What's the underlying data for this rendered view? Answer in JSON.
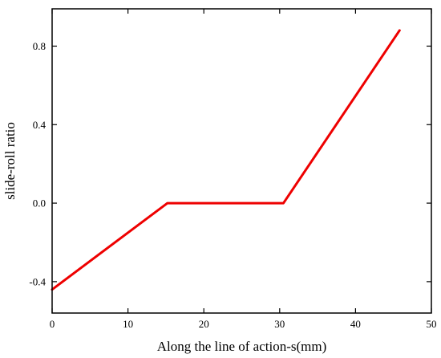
{
  "chart_data": {
    "type": "line",
    "title": "",
    "xlabel": "Along the line of action-s(mm)",
    "ylabel": "slide-roll ratio",
    "xlim": [
      0,
      50
    ],
    "ylim": [
      -0.56,
      0.99
    ],
    "x_ticks": [
      0,
      10,
      20,
      30,
      40,
      50
    ],
    "x_tick_labels": [
      "0",
      "10",
      "20",
      "30",
      "40",
      "50"
    ],
    "y_ticks": [
      -0.4,
      0.0,
      0.4,
      0.8
    ],
    "y_tick_labels": [
      "-0.4",
      "0.0",
      "0.4",
      "0.8"
    ],
    "grid": false,
    "legend": "none",
    "series": [
      {
        "color": "#ee0000",
        "x": [
          0,
          15.2,
          30.5,
          45.8
        ],
        "y": [
          -0.44,
          0.0,
          0.0,
          0.88
        ]
      }
    ]
  }
}
